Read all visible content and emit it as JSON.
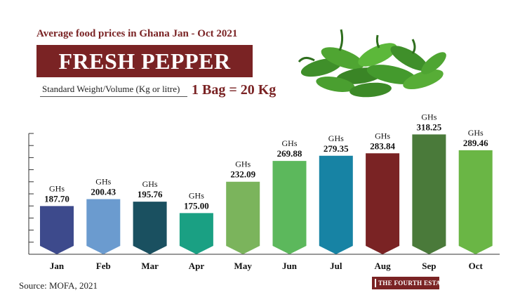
{
  "header": {
    "subtitle": "Average food prices in Ghana Jan - Oct 2021",
    "title": "FRESH PEPPER",
    "standard_label": "Standard Weight/Volume (Kg or litre)",
    "standard_value": "1 Bag = 20 Kg"
  },
  "colors": {
    "brand": "#7a2324",
    "pepper_green": "#3f8f2a"
  },
  "chart_data": {
    "type": "bar",
    "categories": [
      "Jan",
      "Feb",
      "Mar",
      "Apr",
      "May",
      "Jun",
      "Jul",
      "Aug",
      "Sep",
      "Oct"
    ],
    "series": [
      {
        "values": [
          187.7,
          200.43,
          195.76,
          175.0,
          232.09,
          269.88,
          279.35,
          283.84,
          318.25,
          289.46
        ]
      }
    ],
    "value_prefix": "GHs",
    "value_labels": [
      "187.70",
      "200.43",
      "195.76",
      "175.00",
      "232.09",
      "269.88",
      "279.35",
      "283.84",
      "318.25",
      "289.46"
    ],
    "bar_colors": [
      "#3d4a8c",
      "#6b9bcf",
      "#1a5060",
      "#1aa083",
      "#7bb45c",
      "#5cb85c",
      "#1783a4",
      "#7a2324",
      "#4a7a3a",
      "#6ab645"
    ],
    "xlabel": "",
    "ylabel": "",
    "ylim": [
      100,
      320
    ],
    "grid": false
  },
  "footer": {
    "source": "Source: MOFA, 2021",
    "badge": "THE FOURTH ESTATE"
  }
}
